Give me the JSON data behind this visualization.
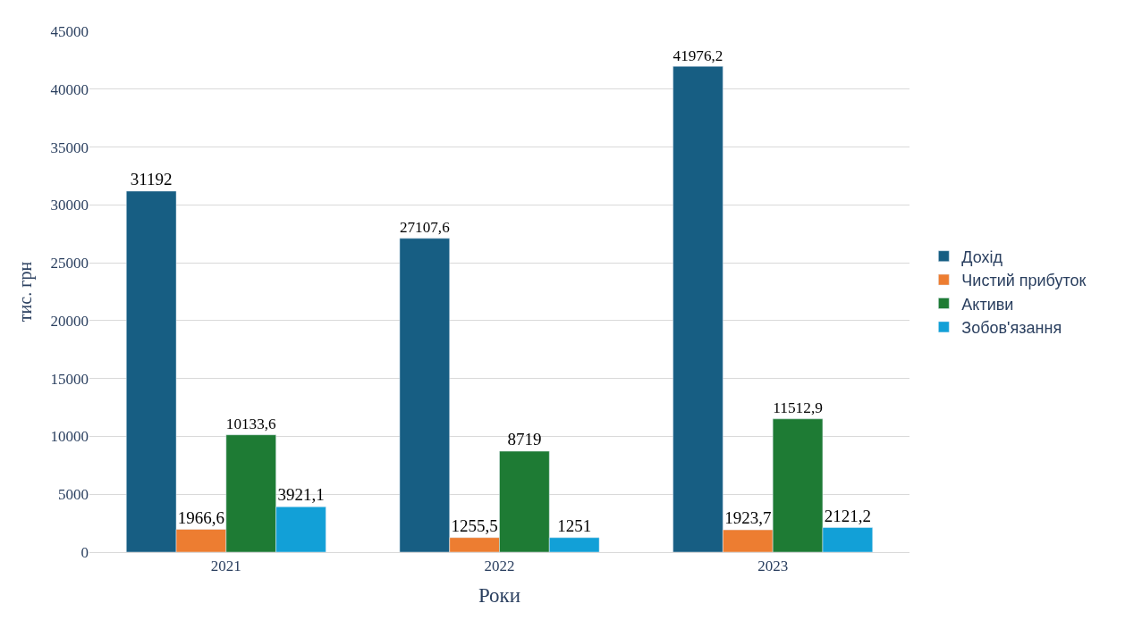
{
  "chart_data": {
    "type": "bar",
    "xlabel": "Роки",
    "ylabel": "тис. грн",
    "categories": [
      "2021",
      "2022",
      "2023"
    ],
    "series": [
      {
        "name": "Дохід",
        "color": "#175e83",
        "values": [
          31192,
          27107.6,
          41976.2
        ],
        "value_labels": [
          "31192",
          "27107,6",
          "41976,2"
        ]
      },
      {
        "name": "Чистий прибуток",
        "color": "#ed7d31",
        "values": [
          1966.6,
          1255.5,
          1923.7
        ],
        "value_labels": [
          "1966,6",
          "1255,5",
          "1923,7"
        ]
      },
      {
        "name": "Активи",
        "color": "#1e7b34",
        "values": [
          10133.6,
          8719,
          11512.9
        ],
        "value_labels": [
          "10133,6",
          "8719",
          "11512,9"
        ]
      },
      {
        "name": "Зобов'язання",
        "color": "#12a0d7",
        "values": [
          3921.1,
          1251,
          2121.2
        ],
        "value_labels": [
          "3921,1",
          "1251",
          "2121,2"
        ]
      }
    ],
    "ylim": [
      0,
      45000
    ],
    "yticks": [
      0,
      5000,
      10000,
      15000,
      20000,
      25000,
      30000,
      35000,
      40000,
      45000
    ],
    "grid": "y",
    "legend": "right"
  }
}
